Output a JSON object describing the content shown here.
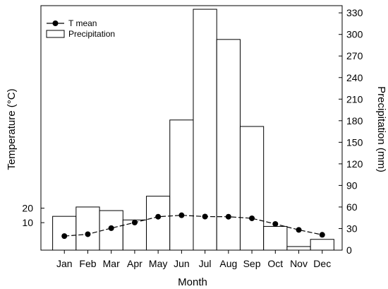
{
  "chart_data": {
    "type": "bar",
    "categories": [
      "Jan",
      "Feb",
      "Mar",
      "Apr",
      "May",
      "Jun",
      "Jul",
      "Aug",
      "Sep",
      "Oct",
      "Nov",
      "Dec"
    ],
    "series": [
      {
        "name": "Precipitation",
        "type": "bar",
        "axis": "right",
        "values": [
          47,
          60,
          55,
          42,
          75,
          181,
          335,
          293,
          172,
          33,
          5,
          15
        ]
      },
      {
        "name": "T mean",
        "type": "line",
        "axis": "left",
        "values": [
          0.7,
          2.0,
          6.2,
          10.1,
          14.1,
          15.1,
          14.2,
          14.1,
          13.0,
          9.1,
          5.0,
          1.6
        ]
      }
    ],
    "xlabel": "Month",
    "ylabel_left": "Temperature (°C)",
    "ylabel_right": "Precipitation (mm)",
    "yticks_left": [
      10,
      20
    ],
    "yticks_right": [
      0,
      30,
      60,
      90,
      120,
      150,
      180,
      210,
      240,
      270,
      300,
      330
    ],
    "ylim_right": [
      0,
      340
    ],
    "ylim_left": [
      -9,
      160
    ],
    "grid": false,
    "legend_position": "top-left",
    "colors": {
      "line": "#000000",
      "bar_fill": "#ffffff",
      "bar_stroke": "#000000"
    }
  }
}
